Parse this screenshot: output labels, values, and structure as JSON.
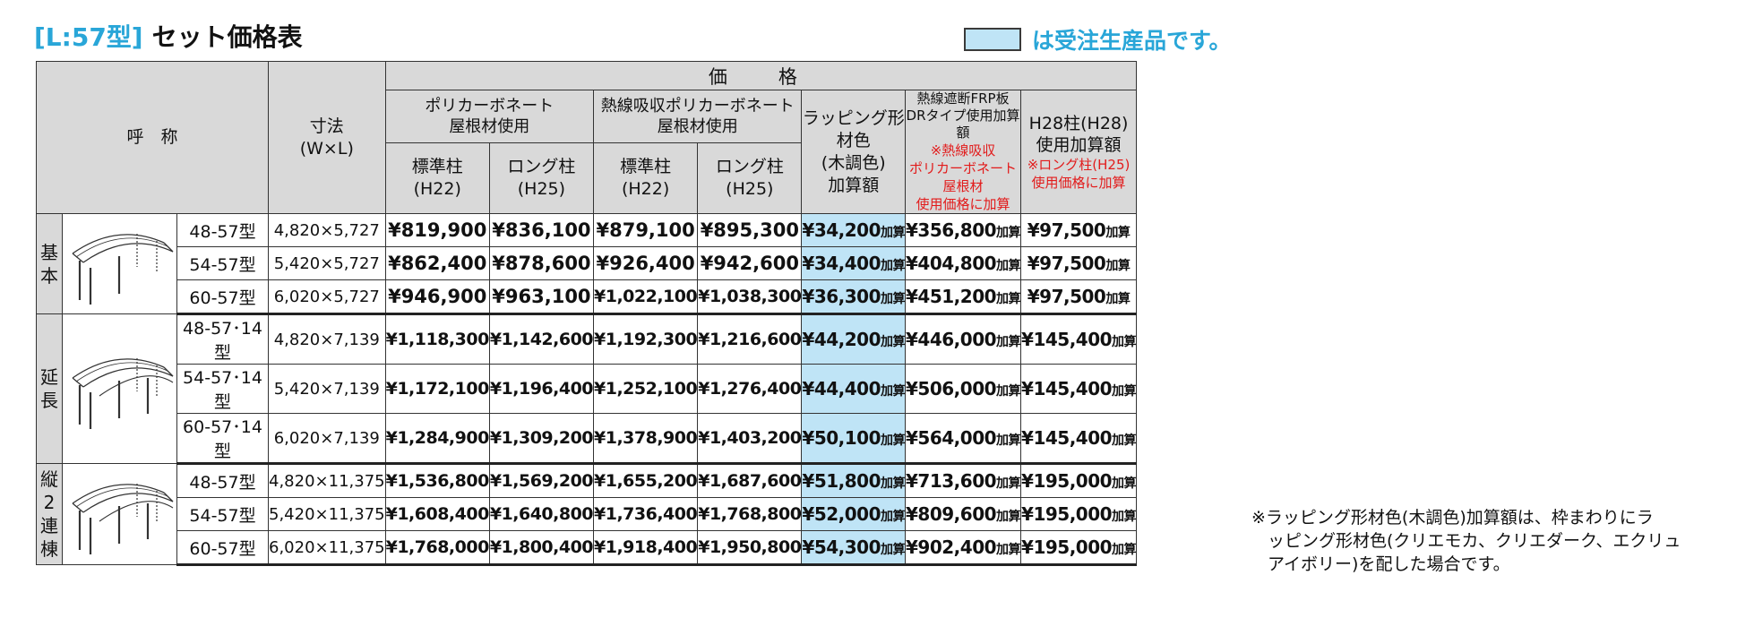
{
  "title": {
    "code": "[L:57型]",
    "name": "セット価格表"
  },
  "legend": {
    "text": "は受注生産品です。",
    "color": "#bfe4f6"
  },
  "header": {
    "price": "価　格",
    "name": "呼　称",
    "size_line1": "寸法",
    "size_line2": "(W×L)",
    "poly_line1": "ポリカーボネート",
    "poly_line2": "屋根材使用",
    "heat_line1": "熱線吸収ポリカーボネート",
    "heat_line2": "屋根材使用",
    "std_line1": "標準柱",
    "std_line2": "(H22)",
    "long_line1": "ロング柱",
    "long_line2": "(H25)",
    "wrap_line1": "ラッピング形材色",
    "wrap_line2": "(木調色)",
    "wrap_line3": "加算額",
    "frp_line1": "熱線遮断FRP板",
    "frp_line2": "DRタイプ使用加算額",
    "frp_red1": "※熱線吸収",
    "frp_red2": "ポリカーボネート屋根材",
    "frp_red3": "使用価格に加算",
    "h28_line1": "H28柱(H28)",
    "h28_line2": "使用加算額",
    "h28_red1": "※ロング柱(H25)",
    "h28_red2": "使用価格に加算"
  },
  "add_suffix": "加算",
  "groups": [
    {
      "label": [
        "基",
        "本"
      ],
      "rows": [
        {
          "model": "48-57型",
          "size": "4,820×5,727",
          "poly_std": "¥819,900",
          "poly_long": "¥836,100",
          "heat_std": "¥879,100",
          "heat_long": "¥895,300",
          "wrap": "¥34,200",
          "frp": "¥356,800",
          "h28": "¥97,500"
        },
        {
          "model": "54-57型",
          "size": "5,420×5,727",
          "poly_std": "¥862,400",
          "poly_long": "¥878,600",
          "heat_std": "¥926,400",
          "heat_long": "¥942,600",
          "wrap": "¥34,400",
          "frp": "¥404,800",
          "h28": "¥97,500"
        },
        {
          "model": "60-57型",
          "size": "6,020×5,727",
          "poly_std": "¥946,900",
          "poly_long": "¥963,100",
          "heat_std": "¥1,022,100",
          "heat_long": "¥1,038,300",
          "wrap": "¥36,300",
          "frp": "¥451,200",
          "h28": "¥97,500"
        }
      ]
    },
    {
      "label": [
        "延",
        "長"
      ],
      "rows": [
        {
          "model": "48-57･14型",
          "size": "4,820×7,139",
          "poly_std": "¥1,118,300",
          "poly_long": "¥1,142,600",
          "heat_std": "¥1,192,300",
          "heat_long": "¥1,216,600",
          "wrap": "¥44,200",
          "frp": "¥446,000",
          "h28": "¥145,400"
        },
        {
          "model": "54-57･14型",
          "size": "5,420×7,139",
          "poly_std": "¥1,172,100",
          "poly_long": "¥1,196,400",
          "heat_std": "¥1,252,100",
          "heat_long": "¥1,276,400",
          "wrap": "¥44,400",
          "frp": "¥506,000",
          "h28": "¥145,400"
        },
        {
          "model": "60-57･14型",
          "size": "6,020×7,139",
          "poly_std": "¥1,284,900",
          "poly_long": "¥1,309,200",
          "heat_std": "¥1,378,900",
          "heat_long": "¥1,403,200",
          "wrap": "¥50,100",
          "frp": "¥564,000",
          "h28": "¥145,400"
        }
      ]
    },
    {
      "label": [
        "縦",
        "2",
        "連",
        "棟"
      ],
      "rows": [
        {
          "model": "48-57型",
          "size": "4,820×11,375",
          "poly_std": "¥1,536,800",
          "poly_long": "¥1,569,200",
          "heat_std": "¥1,655,200",
          "heat_long": "¥1,687,600",
          "wrap": "¥51,800",
          "frp": "¥713,600",
          "h28": "¥195,000"
        },
        {
          "model": "54-57型",
          "size": "5,420×11,375",
          "poly_std": "¥1,608,400",
          "poly_long": "¥1,640,800",
          "heat_std": "¥1,736,400",
          "heat_long": "¥1,768,800",
          "wrap": "¥52,000",
          "frp": "¥809,600",
          "h28": "¥195,000"
        },
        {
          "model": "60-57型",
          "size": "6,020×11,375",
          "poly_std": "¥1,768,000",
          "poly_long": "¥1,800,400",
          "heat_std": "¥1,918,400",
          "heat_long": "¥1,950,800",
          "wrap": "¥54,300",
          "frp": "¥902,400",
          "h28": "¥195,000"
        }
      ]
    }
  ],
  "note": {
    "line1": "※ラッピング形材色(木調色)加算額は、枠まわりにラ",
    "line2": "ッピング形材色(クリエモカ、クリエダーク、エクリュ",
    "line3": "アイボリー)を配した場合です。"
  }
}
